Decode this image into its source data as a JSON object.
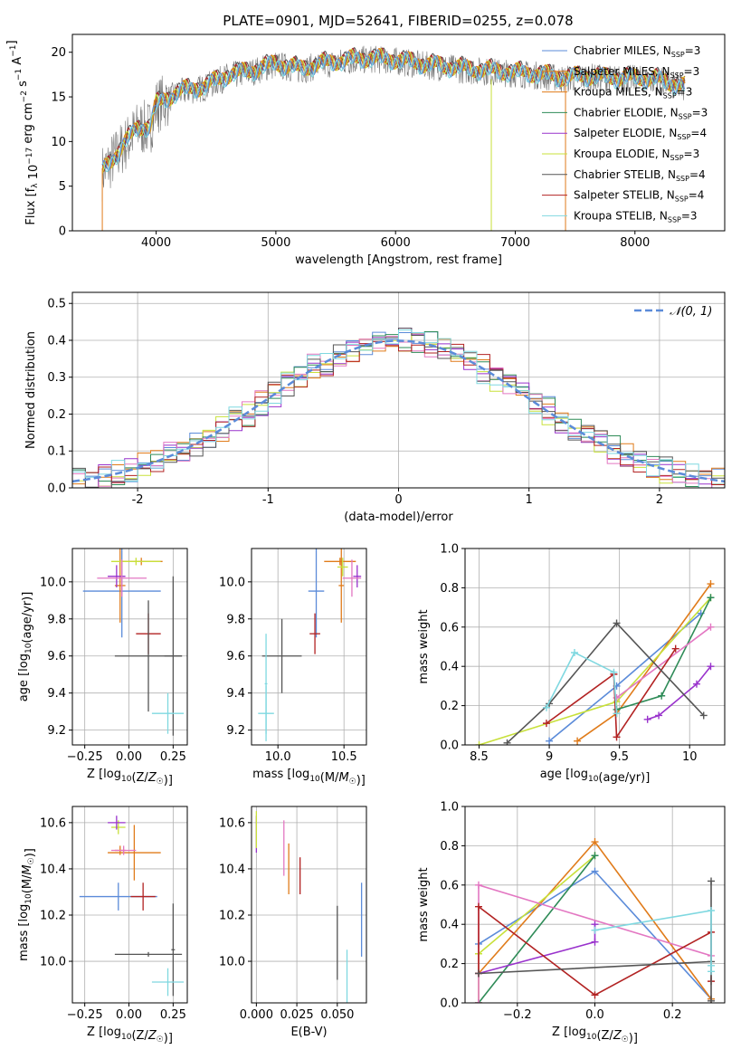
{
  "figure": {
    "title": "PLATE=0901, MJD=52641, FIBERID=0255, z=0.078"
  },
  "colors": {
    "ch_miles": "#5b8bd9",
    "sa_miles": "#e07b1a",
    "kr_miles": "#e07b1a",
    "ch_elodie": "#2e8b57",
    "sa_elodie": "#9932cc",
    "kr_elodie": "#c8e03a",
    "ch_stelib": "#555555",
    "sa_stelib": "#b22222",
    "kr_stelib": "#7fd8e0",
    "pink": "#e377c2",
    "normal": "#5b8bd9"
  },
  "chart_data": [
    {
      "id": "spectrum",
      "type": "line",
      "title": "PLATE=0901, MJD=52641, FIBERID=0255, z=0.078",
      "xlabel": "wavelength [Angstrom, rest frame]",
      "ylabel": "Flux [f_λ 10^-17 erg cm^-2 s^-1 A^-1]",
      "xlim": [
        3300,
        8750
      ],
      "ylim": [
        0,
        22
      ],
      "xticks": [
        4000,
        5000,
        6000,
        7000,
        8000
      ],
      "yticks": [
        0,
        5,
        10,
        15,
        20
      ],
      "grid": false,
      "legend_position": "top-right",
      "continuum": {
        "x": [
          3550,
          3700,
          3850,
          3950,
          4000,
          4200,
          4400,
          4600,
          4800,
          5000,
          5200,
          5400,
          5600,
          5800,
          6000,
          6200,
          6400,
          6600,
          6800,
          7000,
          7200,
          7400,
          7600,
          7800,
          8000,
          8200,
          8400
        ],
        "y": [
          6.5,
          9.0,
          11.5,
          11.5,
          14.0,
          15.5,
          16.0,
          17.3,
          17.8,
          18.6,
          18.0,
          18.6,
          19.0,
          19.2,
          19.0,
          18.6,
          18.3,
          18.0,
          17.8,
          17.6,
          17.4,
          17.0,
          17.2,
          17.0,
          17.0,
          16.8,
          16.0
        ]
      },
      "legend": [
        {
          "label": "Chabrier MILES, N",
          "sub": "SSP",
          "suffix": "=3",
          "color": "#5b8bd9"
        },
        {
          "label": "Salpeter MILES, N",
          "sub": "SSP",
          "suffix": "=3",
          "color": "#e07b1a"
        },
        {
          "label": "Kroupa MILES, N",
          "sub": "SSP",
          "suffix": "=3",
          "color": "#e07b1a"
        },
        {
          "label": "Chabrier ELODIE, N",
          "sub": "SSP",
          "suffix": "=3",
          "color": "#2e8b57"
        },
        {
          "label": "Salpeter ELODIE, N",
          "sub": "SSP",
          "suffix": "=4",
          "color": "#9932cc"
        },
        {
          "label": "Kroupa ELODIE, N",
          "sub": "SSP",
          "suffix": "=3",
          "color": "#c8e03a"
        },
        {
          "label": "Chabrier STELIB, N",
          "sub": "SSP",
          "suffix": "=4",
          "color": "#555555"
        },
        {
          "label": "Salpeter STELIB, N",
          "sub": "SSP",
          "suffix": "=4",
          "color": "#b22222"
        },
        {
          "label": "Kroupa STELIB, N",
          "sub": "SSP",
          "suffix": "=3",
          "color": "#7fd8e0"
        }
      ]
    },
    {
      "id": "residuals",
      "type": "line",
      "xlabel": "(data-model)/error",
      "ylabel": "Normed distribution",
      "xlim": [
        -2.5,
        2.5
      ],
      "ylim": [
        0,
        0.53
      ],
      "xticks": [
        -2,
        -1,
        0,
        1,
        2
      ],
      "yticks": [
        0.0,
        0.1,
        0.2,
        0.3,
        0.4,
        0.5
      ],
      "grid": true,
      "legend_position": "top-right",
      "legend_label": "𝒩(0, 1)",
      "normal_curve": {
        "mean": 0,
        "sigma": 1,
        "style": "dashed"
      }
    },
    {
      "id": "age_vs_Z",
      "type": "scatter",
      "xlabel": "Z [log10(Z/Z☉)]",
      "ylabel": "age  [log10(age/yr)]",
      "xlim": [
        -0.32,
        0.33
      ],
      "ylim": [
        9.12,
        10.18
      ],
      "xticks": [
        -0.25,
        0.0,
        0.25
      ],
      "xticklabels": [
        "−0.25",
        "0.00",
        "0.25"
      ],
      "yticks": [
        9.2,
        9.4,
        9.6,
        9.8,
        10.0
      ],
      "grid": true,
      "points": [
        {
          "x": -0.04,
          "xerr": 0.22,
          "y": 9.95,
          "yerr": 0.25,
          "color": "#5b8bd9"
        },
        {
          "x": 0.07,
          "xerr": 0.12,
          "y": 10.11,
          "yerr": 0.02,
          "color": "#e07b1a"
        },
        {
          "x": -0.05,
          "xerr": 0.03,
          "y": 9.98,
          "yerr": 0.2,
          "color": "#e07b1a"
        },
        {
          "x": 0.04,
          "xerr": 0.14,
          "y": 10.11,
          "yerr": 0.02,
          "color": "#c8e03a"
        },
        {
          "x": -0.07,
          "xerr": 0.05,
          "y": 10.03,
          "yerr": 0.06,
          "color": "#9932cc"
        },
        {
          "x": -0.04,
          "xerr": 0.14,
          "y": 10.02,
          "yerr": 0.1,
          "color": "#e377c2"
        },
        {
          "x": 0.11,
          "xerr": 0.07,
          "y": 9.72,
          "yerr": 0.11,
          "color": "#b22222"
        },
        {
          "x": 0.11,
          "xerr": 0.19,
          "y": 9.6,
          "yerr": 0.3,
          "color": "#555555"
        },
        {
          "x": 0.25,
          "xerr": 0.05,
          "y": 9.6,
          "yerr": 0.43,
          "color": "#555555"
        },
        {
          "x": 0.22,
          "xerr": 0.09,
          "y": 9.29,
          "yerr": 0.11,
          "color": "#7fd8e0"
        }
      ]
    },
    {
      "id": "age_vs_mass",
      "type": "scatter",
      "xlabel": "mass [log10(M/M☉)]",
      "xlim": [
        9.8,
        10.67
      ],
      "ylim": [
        9.12,
        10.18
      ],
      "xticks": [
        10.0,
        10.5
      ],
      "xticklabels": [
        "10.0",
        "10.5"
      ],
      "yticks": [
        9.2,
        9.4,
        9.6,
        9.8,
        10.0
      ],
      "grid": true,
      "points": [
        {
          "x": 10.29,
          "xerr": 0.06,
          "y": 9.95,
          "yerr": 0.25,
          "color": "#5b8bd9"
        },
        {
          "x": 10.47,
          "xerr": 0.12,
          "y": 10.11,
          "yerr": 0.02,
          "color": "#e07b1a"
        },
        {
          "x": 10.48,
          "xerr": 0.02,
          "y": 9.98,
          "yerr": 0.2,
          "color": "#e07b1a"
        },
        {
          "x": 10.49,
          "xerr": 0.04,
          "y": 10.08,
          "yerr": 0.05,
          "color": "#c8e03a"
        },
        {
          "x": 10.6,
          "xerr": 0.03,
          "y": 10.03,
          "yerr": 0.06,
          "color": "#9932cc"
        },
        {
          "x": 10.56,
          "xerr": 0.07,
          "y": 10.02,
          "yerr": 0.1,
          "color": "#e377c2"
        },
        {
          "x": 10.28,
          "xerr": 0.04,
          "y": 9.72,
          "yerr": 0.11,
          "color": "#b22222"
        },
        {
          "x": 10.03,
          "xerr": 0.15,
          "y": 9.6,
          "yerr": 0.2,
          "color": "#555555"
        },
        {
          "x": 9.91,
          "xerr": 0.06,
          "y": 9.29,
          "yerr": 0.15,
          "color": "#7fd8e0"
        },
        {
          "x": 9.91,
          "xerr": 0.01,
          "y": 9.45,
          "yerr": 0.27,
          "color": "#7fd8e0"
        }
      ]
    },
    {
      "id": "weight_vs_age",
      "type": "line",
      "xlabel": "age  [log10(age/yr)]",
      "ylabel": "mass weight",
      "xlim": [
        8.4,
        10.25
      ],
      "ylim": [
        0,
        1.0
      ],
      "xticks": [
        8.5,
        9.0,
        9.5,
        10.0
      ],
      "yticks": [
        0.0,
        0.2,
        0.4,
        0.6,
        0.8,
        1.0
      ],
      "grid": true,
      "series": [
        {
          "color": "#5b8bd9",
          "x": [
            9.0,
            9.48,
            10.08
          ],
          "y": [
            0.02,
            0.3,
            0.67
          ]
        },
        {
          "color": "#e07b1a",
          "x": [
            9.2,
            9.48,
            10.15
          ],
          "y": [
            0.02,
            0.16,
            0.82
          ]
        },
        {
          "color": "#c8e03a",
          "x": [
            8.5,
            9.48,
            10.15
          ],
          "y": [
            0.0,
            0.22,
            0.75
          ]
        },
        {
          "color": "#2e8b57",
          "x": [
            9.48,
            9.8,
            10.15
          ],
          "y": [
            0.18,
            0.25,
            0.75
          ]
        },
        {
          "color": "#9932cc",
          "x": [
            9.7,
            9.78,
            10.05,
            10.15
          ],
          "y": [
            0.13,
            0.15,
            0.31,
            0.4
          ]
        },
        {
          "color": "#e377c2",
          "x": [
            9.48,
            10.15
          ],
          "y": [
            0.24,
            0.6
          ]
        },
        {
          "color": "#b22222",
          "x": [
            8.98,
            9.46,
            9.48,
            9.9
          ],
          "y": [
            0.11,
            0.36,
            0.04,
            0.49
          ]
        },
        {
          "color": "#555555",
          "x": [
            8.7,
            9.0,
            9.48,
            10.1
          ],
          "y": [
            0.01,
            0.21,
            0.62,
            0.15
          ]
        },
        {
          "color": "#7fd8e0",
          "x": [
            8.98,
            9.18,
            9.46,
            9.48
          ],
          "y": [
            0.19,
            0.47,
            0.37,
            0.16
          ]
        }
      ]
    },
    {
      "id": "mass_vs_Z",
      "type": "scatter",
      "xlabel": "Z [log10(Z/Z☉)]",
      "ylabel": "mass [log10(M/M☉)]",
      "xlim": [
        -0.32,
        0.33
      ],
      "ylim": [
        9.82,
        10.67
      ],
      "xticks": [
        -0.25,
        0.0,
        0.25
      ],
      "xticklabels": [
        "−0.25",
        "0.00",
        "0.25"
      ],
      "yticks": [
        10.0,
        10.2,
        10.4,
        10.6
      ],
      "grid": true,
      "points": [
        {
          "x": -0.06,
          "xerr": 0.22,
          "y": 10.28,
          "yerr": 0.06,
          "color": "#5b8bd9"
        },
        {
          "x": 0.03,
          "xerr": 0.15,
          "y": 10.47,
          "yerr": 0.12,
          "color": "#e07b1a"
        },
        {
          "x": -0.05,
          "xerr": 0.03,
          "y": 10.48,
          "yerr": 0.02,
          "color": "#e07b1a"
        },
        {
          "x": -0.06,
          "xerr": 0.04,
          "y": 10.58,
          "yerr": 0.03,
          "color": "#c8e03a"
        },
        {
          "x": -0.07,
          "xerr": 0.05,
          "y": 10.6,
          "yerr": 0.03,
          "color": "#9932cc"
        },
        {
          "x": -0.03,
          "xerr": 0.07,
          "y": 10.48,
          "yerr": 0.02,
          "color": "#e377c2"
        },
        {
          "x": 0.08,
          "xerr": 0.07,
          "y": 10.28,
          "yerr": 0.06,
          "color": "#b22222"
        },
        {
          "x": 0.11,
          "xerr": 0.19,
          "y": 10.03,
          "yerr": 0.01,
          "color": "#555555"
        },
        {
          "x": 0.25,
          "xerr": 0.01,
          "y": 10.05,
          "yerr": 0.2,
          "color": "#555555"
        },
        {
          "x": 0.22,
          "xerr": 0.09,
          "y": 9.91,
          "yerr": 0.06,
          "color": "#7fd8e0"
        }
      ]
    },
    {
      "id": "mass_vs_ebv",
      "type": "scatter",
      "xlabel": "E(B-V)",
      "xlim": [
        -0.003,
        0.068
      ],
      "ylim": [
        9.82,
        10.67
      ],
      "xticks": [
        0.0,
        0.025,
        0.05
      ],
      "xticklabels": [
        "0.000",
        "0.025",
        "0.050"
      ],
      "yticks": [
        10.0,
        10.2,
        10.4,
        10.6
      ],
      "grid": true,
      "points": [
        {
          "x": 0.065,
          "y": 10.18,
          "yerr": 0.16,
          "color": "#5b8bd9"
        },
        {
          "x": 0.02,
          "y": 10.4,
          "yerr": 0.11,
          "color": "#e07b1a"
        },
        {
          "x": 0.017,
          "y": 10.49,
          "yerr": 0.12,
          "color": "#e377c2"
        },
        {
          "x": 0.0,
          "y": 10.55,
          "yerr": 0.08,
          "color": "#9932cc"
        },
        {
          "x": 0.0,
          "y": 10.57,
          "yerr": 0.08,
          "color": "#c8e03a"
        },
        {
          "x": 0.027,
          "y": 10.37,
          "yerr": 0.08,
          "color": "#b22222"
        },
        {
          "x": 0.05,
          "y": 10.08,
          "yerr": 0.16,
          "color": "#555555"
        },
        {
          "x": 0.056,
          "y": 9.93,
          "yerr": 0.12,
          "color": "#7fd8e0"
        }
      ]
    },
    {
      "id": "weight_vs_Z",
      "type": "line",
      "xlabel": "Z [log10(Z/Z☉)]",
      "ylabel": "mass weight",
      "xlim": [
        -0.335,
        0.335
      ],
      "ylim": [
        0,
        1.0
      ],
      "xticks": [
        -0.2,
        0.0,
        0.2
      ],
      "xticklabels": [
        "−0.2",
        "0.0",
        "0.2"
      ],
      "yticks": [
        0.0,
        0.2,
        0.4,
        0.6,
        0.8,
        1.0
      ],
      "grid": true,
      "series": [
        {
          "color": "#5b8bd9",
          "x": [
            -0.3,
            0.0,
            0.3
          ],
          "y": [
            0.3,
            0.67,
            0.02
          ]
        },
        {
          "color": "#e07b1a",
          "x": [
            -0.3,
            0.0,
            0.3
          ],
          "y": [
            0.15,
            0.82,
            0.02
          ]
        },
        {
          "color": "#c8e03a",
          "x": [
            -0.3,
            -0.3,
            0.0
          ],
          "y": [
            0.0,
            0.25,
            0.75
          ]
        },
        {
          "color": "#2e8b57",
          "x": [
            -0.3,
            0.0
          ],
          "y": [
            0.0,
            0.75
          ]
        },
        {
          "color": "#9932cc",
          "x": [
            -0.3,
            0.0,
            0.0
          ],
          "y": [
            0.15,
            0.31,
            0.4
          ]
        },
        {
          "color": "#e377c2",
          "x": [
            -0.3,
            -0.3,
            0.3
          ],
          "y": [
            0.0,
            0.6,
            0.24
          ]
        },
        {
          "color": "#b22222",
          "x": [
            -0.3,
            -0.3,
            0.0,
            0.3,
            0.3
          ],
          "y": [
            0.15,
            0.49,
            0.04,
            0.36,
            0.11
          ]
        },
        {
          "color": "#555555",
          "x": [
            -0.3,
            0.3,
            0.3,
            0.3
          ],
          "y": [
            0.15,
            0.21,
            0.62,
            0.01
          ]
        },
        {
          "color": "#7fd8e0",
          "x": [
            0.0,
            0.3,
            0.3,
            0.3
          ],
          "y": [
            0.37,
            0.47,
            0.19,
            0.16
          ]
        }
      ]
    }
  ]
}
